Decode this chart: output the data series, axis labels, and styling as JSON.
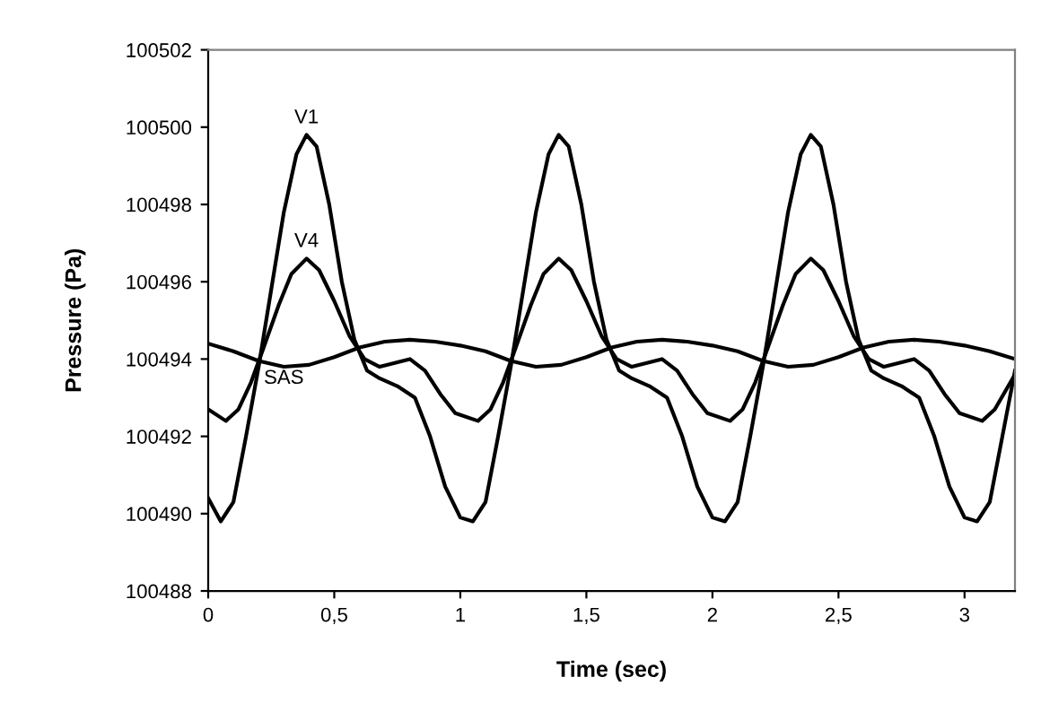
{
  "chart_data": {
    "type": "line",
    "xlabel": "Time (sec)",
    "ylabel": "Pressure (Pa)",
    "xlim": [
      0,
      3.2
    ],
    "ylim": [
      100488,
      100502
    ],
    "xticks": [
      0,
      {
        "value": 0.5,
        "label": "0,5"
      },
      1,
      {
        "value": 1.5,
        "label": "1,5"
      },
      2,
      {
        "value": 2.5,
        "label": "2,5"
      },
      3
    ],
    "yticks": [
      100488,
      100490,
      100492,
      100494,
      100496,
      100498,
      100500,
      100502
    ],
    "grid": false,
    "legend": false,
    "marker": "none",
    "line_style": "solid",
    "series": [
      {
        "name": "V1",
        "color": "#000000",
        "x": [
          0,
          0.05,
          0.1,
          0.15,
          0.2,
          0.25,
          0.3,
          0.35,
          0.39,
          0.43,
          0.48,
          0.53,
          0.58,
          0.63,
          0.68,
          0.75,
          0.82,
          0.88,
          0.94,
          1.0,
          1.05,
          1.1,
          1.15,
          1.2,
          1.25,
          1.3,
          1.35,
          1.39,
          1.43,
          1.48,
          1.53,
          1.58,
          1.63,
          1.68,
          1.75,
          1.82,
          1.88,
          1.94,
          2.0,
          2.05,
          2.1,
          2.15,
          2.2,
          2.25,
          2.3,
          2.35,
          2.39,
          2.43,
          2.48,
          2.53,
          2.58,
          2.63,
          2.68,
          2.75,
          2.82,
          2.88,
          2.94,
          3.0,
          3.05,
          3.1,
          3.15,
          3.2
        ],
        "values": [
          100490.4,
          100489.8,
          100490.3,
          100492.0,
          100493.8,
          100495.8,
          100497.8,
          100499.3,
          100499.8,
          100499.5,
          100498.0,
          100496.0,
          100494.5,
          100493.7,
          100493.5,
          100493.3,
          100493.0,
          100492.0,
          100490.7,
          100489.9,
          100489.8,
          100490.3,
          100492.0,
          100493.8,
          100495.8,
          100497.8,
          100499.3,
          100499.8,
          100499.5,
          100498.0,
          100496.0,
          100494.5,
          100493.7,
          100493.5,
          100493.3,
          100493.0,
          100492.0,
          100490.7,
          100489.9,
          100489.8,
          100490.3,
          100492.0,
          100493.8,
          100495.8,
          100497.8,
          100499.3,
          100499.8,
          100499.5,
          100498.0,
          100496.0,
          100494.5,
          100493.7,
          100493.5,
          100493.3,
          100493.0,
          100492.0,
          100490.7,
          100489.9,
          100489.8,
          100490.3,
          100492.0,
          100493.7
        ]
      },
      {
        "name": "V4",
        "color": "#000000",
        "x": [
          0,
          0.07,
          0.12,
          0.17,
          0.22,
          0.28,
          0.33,
          0.39,
          0.44,
          0.5,
          0.56,
          0.62,
          0.68,
          0.74,
          0.8,
          0.86,
          0.92,
          0.98,
          1.07,
          1.12,
          1.17,
          1.22,
          1.28,
          1.33,
          1.39,
          1.44,
          1.5,
          1.56,
          1.62,
          1.68,
          1.74,
          1.8,
          1.86,
          1.92,
          1.98,
          2.07,
          2.12,
          2.17,
          2.22,
          2.28,
          2.33,
          2.39,
          2.44,
          2.5,
          2.56,
          2.62,
          2.68,
          2.74,
          2.8,
          2.86,
          2.92,
          2.98,
          3.07,
          3.12,
          3.2
        ],
        "values": [
          100492.7,
          100492.4,
          100492.7,
          100493.4,
          100494.3,
          100495.4,
          100496.2,
          100496.6,
          100496.3,
          100495.5,
          100494.6,
          100494.0,
          100493.8,
          100493.9,
          100494.0,
          100493.7,
          100493.1,
          100492.6,
          100492.4,
          100492.7,
          100493.4,
          100494.3,
          100495.4,
          100496.2,
          100496.6,
          100496.3,
          100495.5,
          100494.6,
          100494.0,
          100493.8,
          100493.9,
          100494.0,
          100493.7,
          100493.1,
          100492.6,
          100492.4,
          100492.7,
          100493.4,
          100494.3,
          100495.4,
          100496.2,
          100496.6,
          100496.3,
          100495.5,
          100494.6,
          100494.0,
          100493.8,
          100493.9,
          100494.0,
          100493.7,
          100493.1,
          100492.6,
          100492.4,
          100492.7,
          100493.6
        ]
      },
      {
        "name": "SAS",
        "color": "#000000",
        "x": [
          0,
          0.1,
          0.2,
          0.3,
          0.4,
          0.5,
          0.6,
          0.7,
          0.8,
          0.9,
          1.0,
          1.1,
          1.2,
          1.3,
          1.4,
          1.5,
          1.6,
          1.7,
          1.8,
          1.9,
          2.0,
          2.1,
          2.2,
          2.3,
          2.4,
          2.5,
          2.6,
          2.7,
          2.8,
          2.9,
          3.0,
          3.1,
          3.2
        ],
        "values": [
          100494.4,
          100494.2,
          100493.95,
          100493.8,
          100493.85,
          100494.05,
          100494.3,
          100494.45,
          100494.5,
          100494.45,
          100494.35,
          100494.2,
          100493.95,
          100493.8,
          100493.85,
          100494.05,
          100494.3,
          100494.45,
          100494.5,
          100494.45,
          100494.35,
          100494.2,
          100493.95,
          100493.8,
          100493.85,
          100494.05,
          100494.3,
          100494.45,
          100494.5,
          100494.45,
          100494.35,
          100494.2,
          100494.0
        ]
      }
    ]
  }
}
